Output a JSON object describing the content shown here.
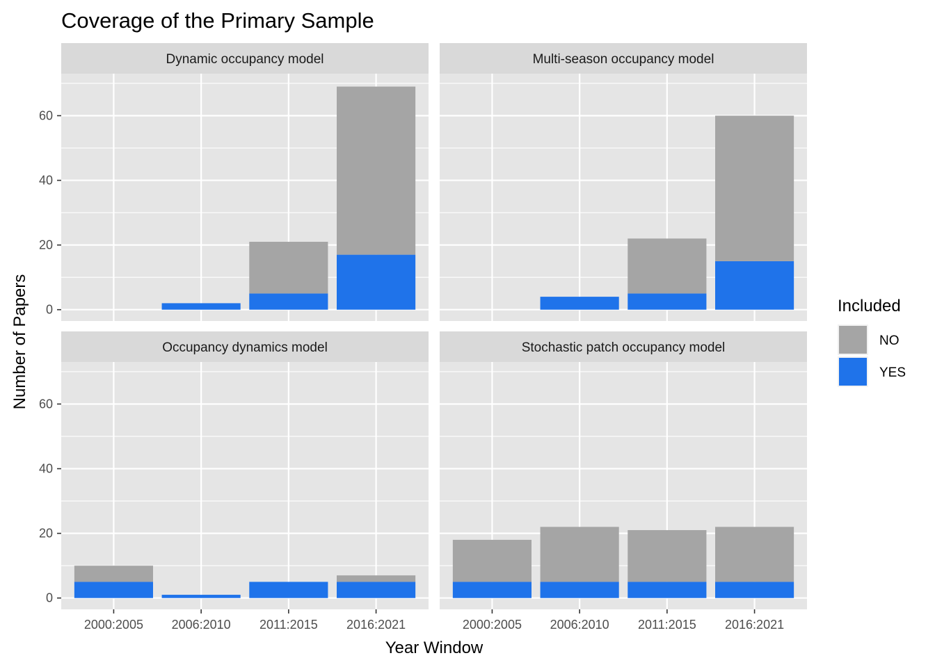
{
  "chart_data": {
    "type": "bar",
    "stacked": true,
    "title": "Coverage of the Primary Sample",
    "xlabel": "Year Window",
    "ylabel": "Number of Papers",
    "categories": [
      "2000:2005",
      "2006:2010",
      "2011:2015",
      "2016:2021"
    ],
    "ylim": [
      -3.5,
      73
    ],
    "yticks": [
      0,
      20,
      40,
      60
    ],
    "grid": true,
    "legend": {
      "title": "Included",
      "placement": "right",
      "entries": [
        {
          "label": "NO",
          "color": "#a5a5a5"
        },
        {
          "label": "YES",
          "color": "#1f73ea"
        }
      ]
    },
    "panels": [
      {
        "title": "Dynamic occupancy model",
        "series": [
          {
            "name": "YES",
            "values": [
              0,
              2,
              5,
              17
            ]
          },
          {
            "name": "NO",
            "values": [
              0,
              0,
              16,
              52
            ]
          }
        ]
      },
      {
        "title": "Multi-season occupancy model",
        "series": [
          {
            "name": "YES",
            "values": [
              0,
              4,
              5,
              15
            ]
          },
          {
            "name": "NO",
            "values": [
              0,
              0,
              17,
              45
            ]
          }
        ]
      },
      {
        "title": "Occupancy dynamics model",
        "series": [
          {
            "name": "YES",
            "values": [
              5,
              1,
              5,
              5
            ]
          },
          {
            "name": "NO",
            "values": [
              5,
              0,
              0,
              2
            ]
          }
        ]
      },
      {
        "title": "Stochastic patch occupancy model",
        "series": [
          {
            "name": "YES",
            "values": [
              5,
              5,
              5,
              5
            ]
          },
          {
            "name": "NO",
            "values": [
              13,
              17,
              16,
              17
            ]
          }
        ]
      }
    ]
  },
  "colors": {
    "panel_background": "#e5e5e5",
    "strip_background": "#d9d9d9",
    "grid": "#ffffff",
    "no": "#a5a5a5",
    "yes": "#1f73ea"
  }
}
